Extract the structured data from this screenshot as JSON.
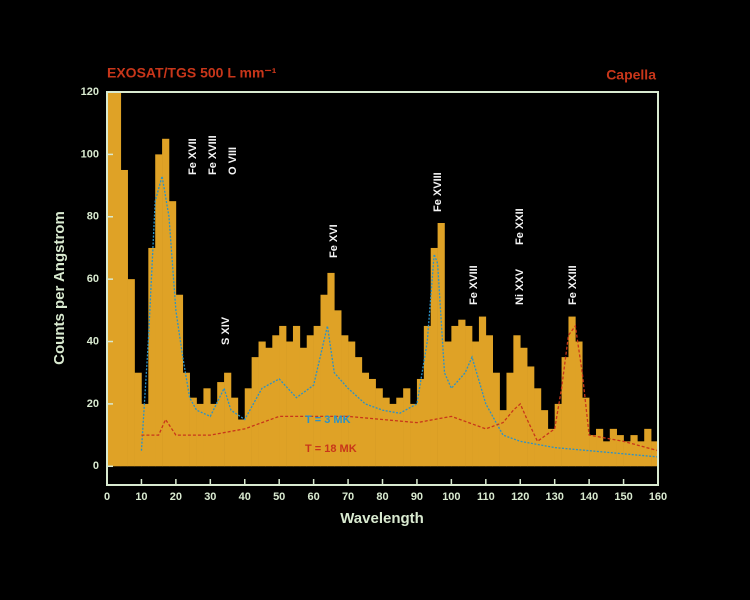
{
  "chart_data": {
    "type": "histogram",
    "title": "EXOSAT/TGS 500 L mm⁻¹",
    "subtitle": "Capella",
    "xlabel": "Wavelength",
    "ylabel": "Counts per Angstrom",
    "color": "#dfa226",
    "axis_color": "#d9ead0",
    "bins": [
      0,
      2,
      4,
      6,
      8,
      10,
      12,
      14,
      16,
      18,
      20,
      22,
      24,
      26,
      28,
      30,
      32,
      34,
      36,
      38,
      40,
      42,
      44,
      46,
      48,
      50,
      52,
      54,
      56,
      58,
      60,
      62,
      64,
      66,
      68,
      70,
      72,
      74,
      76,
      78,
      80,
      82,
      84,
      86,
      88,
      90,
      92,
      94,
      96,
      98,
      100,
      102,
      104,
      106,
      108,
      110,
      112,
      114,
      116,
      118,
      120,
      122,
      124,
      126,
      128,
      130,
      132,
      134,
      136,
      138,
      140,
      142,
      144,
      146,
      148,
      150,
      152,
      154,
      156,
      158,
      160
    ],
    "counts": [
      120,
      120,
      95,
      60,
      30,
      20,
      70,
      100,
      105,
      85,
      55,
      30,
      22,
      20,
      25,
      20,
      27,
      30,
      22,
      15,
      25,
      35,
      40,
      38,
      42,
      45,
      40,
      45,
      38,
      42,
      45,
      55,
      62,
      50,
      42,
      40,
      35,
      30,
      28,
      25,
      22,
      20,
      22,
      25,
      20,
      28,
      45,
      70,
      78,
      40,
      45,
      47,
      45,
      40,
      48,
      42,
      30,
      18,
      30,
      42,
      38,
      32,
      25,
      18,
      12,
      20,
      35,
      48,
      40,
      22,
      10,
      12,
      8,
      12,
      10,
      8,
      10,
      8,
      12,
      8
    ],
    "series": [
      {
        "name": "T = 3 MK",
        "color": "#2a92c8",
        "x": [
          10,
          12,
          14,
          16,
          18,
          20,
          22,
          24,
          26,
          30,
          34,
          36,
          40,
          45,
          50,
          55,
          60,
          64,
          66,
          70,
          75,
          80,
          85,
          90,
          93,
          95,
          96,
          98,
          100,
          104,
          106,
          110,
          115,
          120,
          130,
          140,
          150,
          160
        ],
        "values": [
          5,
          40,
          85,
          93,
          80,
          50,
          35,
          22,
          18,
          16,
          25,
          18,
          15,
          25,
          28,
          22,
          26,
          45,
          30,
          25,
          20,
          18,
          17,
          20,
          40,
          68,
          65,
          30,
          25,
          30,
          35,
          20,
          10,
          8,
          6,
          5,
          4,
          3
        ]
      },
      {
        "name": "T = 18 MK",
        "color": "#c8361a",
        "x": [
          10,
          15,
          17,
          20,
          30,
          40,
          50,
          60,
          70,
          80,
          90,
          100,
          110,
          115,
          118,
          120,
          122,
          125,
          130,
          132,
          134,
          136,
          138,
          140,
          150,
          160
        ],
        "values": [
          10,
          10,
          15,
          10,
          10,
          12,
          16,
          16,
          16,
          15,
          14,
          16,
          12,
          14,
          18,
          20,
          15,
          8,
          12,
          25,
          42,
          45,
          30,
          10,
          8,
          5
        ]
      }
    ],
    "annotations": [
      "Fe XVII",
      "Fe XVIII",
      "O VIII",
      "S XIV",
      "Fe XVI",
      "Fe XVIII",
      "Fe XVIII",
      "Ni XXV",
      "Fe XXII",
      "Fe XXIII"
    ],
    "xlim": [
      0,
      160
    ],
    "ylim": [
      -6,
      120
    ],
    "xticks": [
      0,
      10,
      20,
      30,
      40,
      50,
      60,
      70,
      80,
      90,
      100,
      110,
      120,
      130,
      140,
      150,
      160
    ],
    "yticks": [
      0,
      20,
      40,
      60,
      80,
      100,
      120
    ]
  }
}
